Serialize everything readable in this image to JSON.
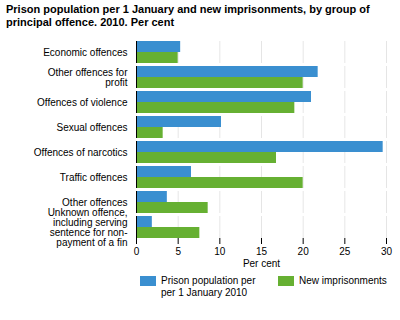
{
  "chart_data": {
    "type": "bar",
    "orientation": "horizontal",
    "title": "Prison population per 1 January and new imprisonments, by group of principal offence. 2010. Per cent",
    "xlabel": "Per cent",
    "categories": [
      "Economic offences",
      "Other offences for profit",
      "Offences of violence",
      "Sexual offences",
      "Offences of narcotics",
      "Traffic offences",
      "Other offences",
      "Unknown offence, including serving sentence for non-payment of a fin"
    ],
    "series": [
      {
        "name": "Prison population per per 1 January 2010",
        "color": "#3a8fd0",
        "values": [
          5.3,
          21.8,
          21.0,
          10.2,
          29.6,
          6.6,
          3.7,
          1.9
        ]
      },
      {
        "name": "New imprisonments",
        "color": "#66b032",
        "values": [
          5.0,
          20.0,
          19.0,
          3.2,
          16.8,
          20.0,
          8.6,
          7.6
        ]
      }
    ],
    "xlim": [
      0,
      30
    ],
    "xticks": [
      0,
      5,
      10,
      15,
      20,
      25,
      30
    ],
    "grid": true,
    "legend": "bottom"
  }
}
